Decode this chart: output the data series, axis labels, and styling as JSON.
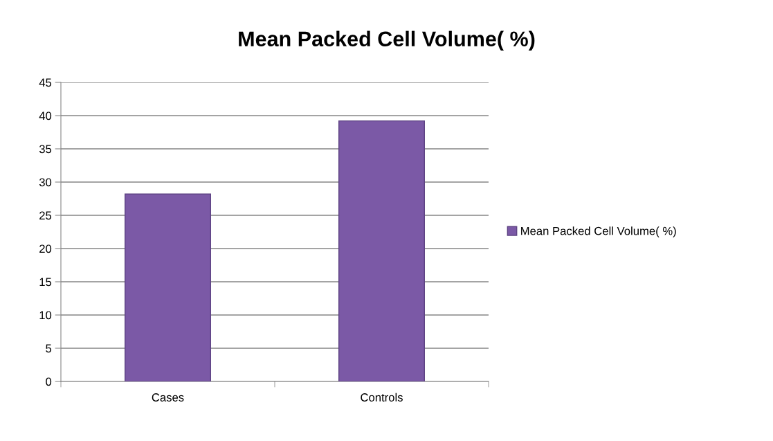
{
  "chart_data": {
    "type": "bar",
    "title": "Mean Packed Cell Volume( %)",
    "categories": [
      "Cases",
      "Controls"
    ],
    "series": [
      {
        "name": "Mean Packed Cell Volume( %)",
        "color": "#7b59a6",
        "values": [
          28.2,
          39.2
        ]
      }
    ],
    "ylim": [
      0,
      45
    ],
    "yticks": [
      0,
      5,
      10,
      15,
      20,
      25,
      30,
      35,
      40,
      45
    ],
    "grid": "y",
    "legend": "right"
  }
}
